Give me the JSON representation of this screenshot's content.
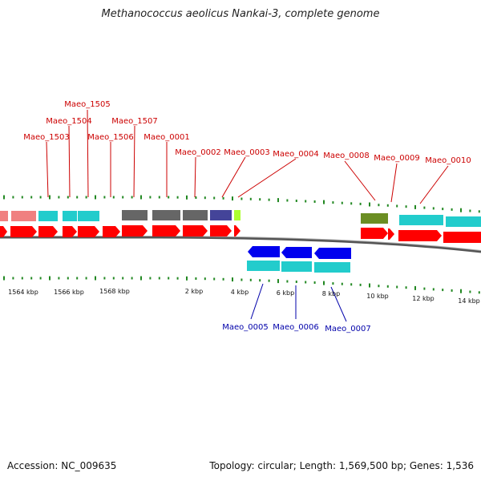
{
  "title": "Methanococcus aeolicus Nankai-3, complete genome",
  "footer": {
    "accession": "Accession: NC_009635",
    "summary": "Topology: circular; Length: 1,569,500 bp; Genes: 1,536"
  },
  "colors": {
    "cds_forward": "#ff0000",
    "cds_reverse": "#0000ee",
    "feature_cyan": "#22cccc",
    "feature_gray": "#666666",
    "feature_pink": "#f08080",
    "feature_navy": "#444499",
    "feature_olive": "#6b8e23",
    "feature_lime": "#adff2f",
    "tick": "#228822",
    "forward_label": "#cc0000",
    "reverse_label": "#0000aa"
  },
  "axis_labels": [
    "1564 kbp",
    "1566 kbp",
    "1568 kbp",
    "2 kbp",
    "4 kbp",
    "6 kbp",
    "8 kbp",
    "10 kbp",
    "12 kbp",
    "14 kbp"
  ],
  "forward_genes": [
    "Maeo_1503",
    "Maeo_1504",
    "Maeo_1505",
    "Maeo_1506",
    "Maeo_1507",
    "Maeo_0001",
    "Maeo_0002",
    "Maeo_0003",
    "Maeo_0004",
    "Maeo_0008",
    "Maeo_0009",
    "Maeo_0010"
  ],
  "reverse_genes": [
    "Maeo_0005",
    "Maeo_0006",
    "Maeo_0007"
  ]
}
